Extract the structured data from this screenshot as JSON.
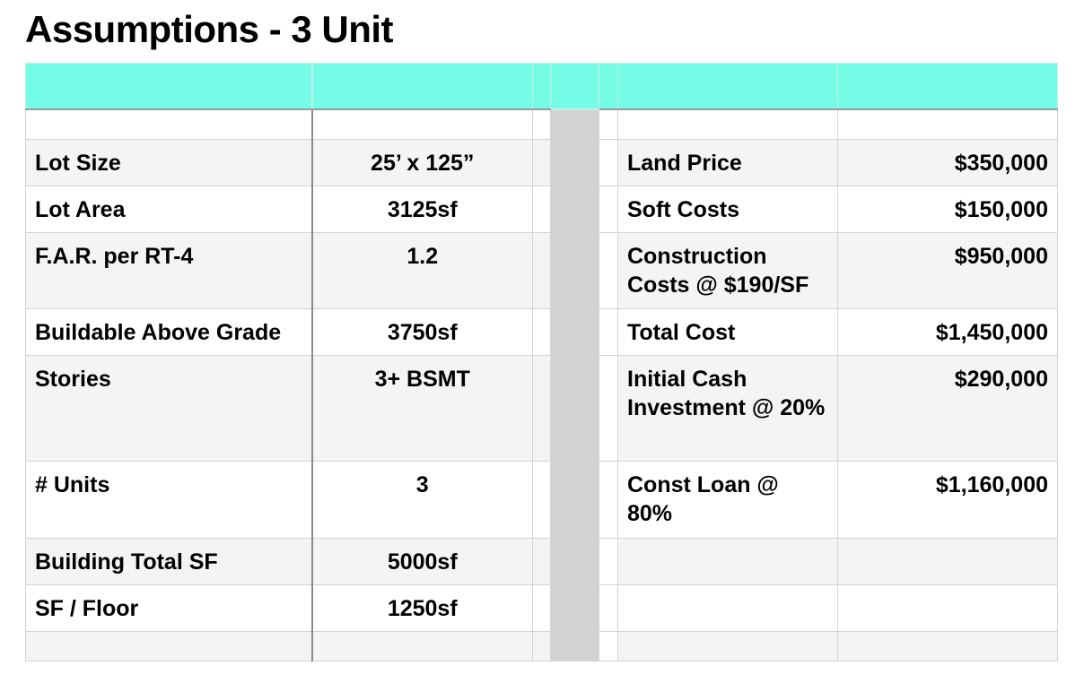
{
  "title": "Assumptions - 3 Unit",
  "rows": [
    {
      "l_label": "Lot Size",
      "l_value": "25’ x 125”",
      "r_label": "Land Price",
      "r_value": "$350,000"
    },
    {
      "l_label": "Lot Area",
      "l_value": "3125sf",
      "r_label": "Soft Costs",
      "r_value": "$150,000"
    },
    {
      "l_label": "F.A.R. per RT-4",
      "l_value": "1.2",
      "r_label": "Construction Costs @ $190/SF",
      "r_value": "$950,000"
    },
    {
      "l_label": "Buildable Above Grade",
      "l_value": "3750sf",
      "r_label": "Total Cost",
      "r_value": "$1,450,000"
    },
    {
      "l_label": "Stories",
      "l_value": "3+ BSMT",
      "r_label": "Initial Cash Investment @ 20%",
      "r_value": "$290,000"
    },
    {
      "l_label": "# Units",
      "l_value": "3",
      "r_label": "Const Loan @ 80%",
      "r_value": "$1,160,000"
    },
    {
      "l_label": "Building Total SF",
      "l_value": "5000sf",
      "r_label": "",
      "r_value": ""
    },
    {
      "l_label": "SF / Floor",
      "l_value": "1250sf",
      "r_label": "",
      "r_value": ""
    }
  ]
}
